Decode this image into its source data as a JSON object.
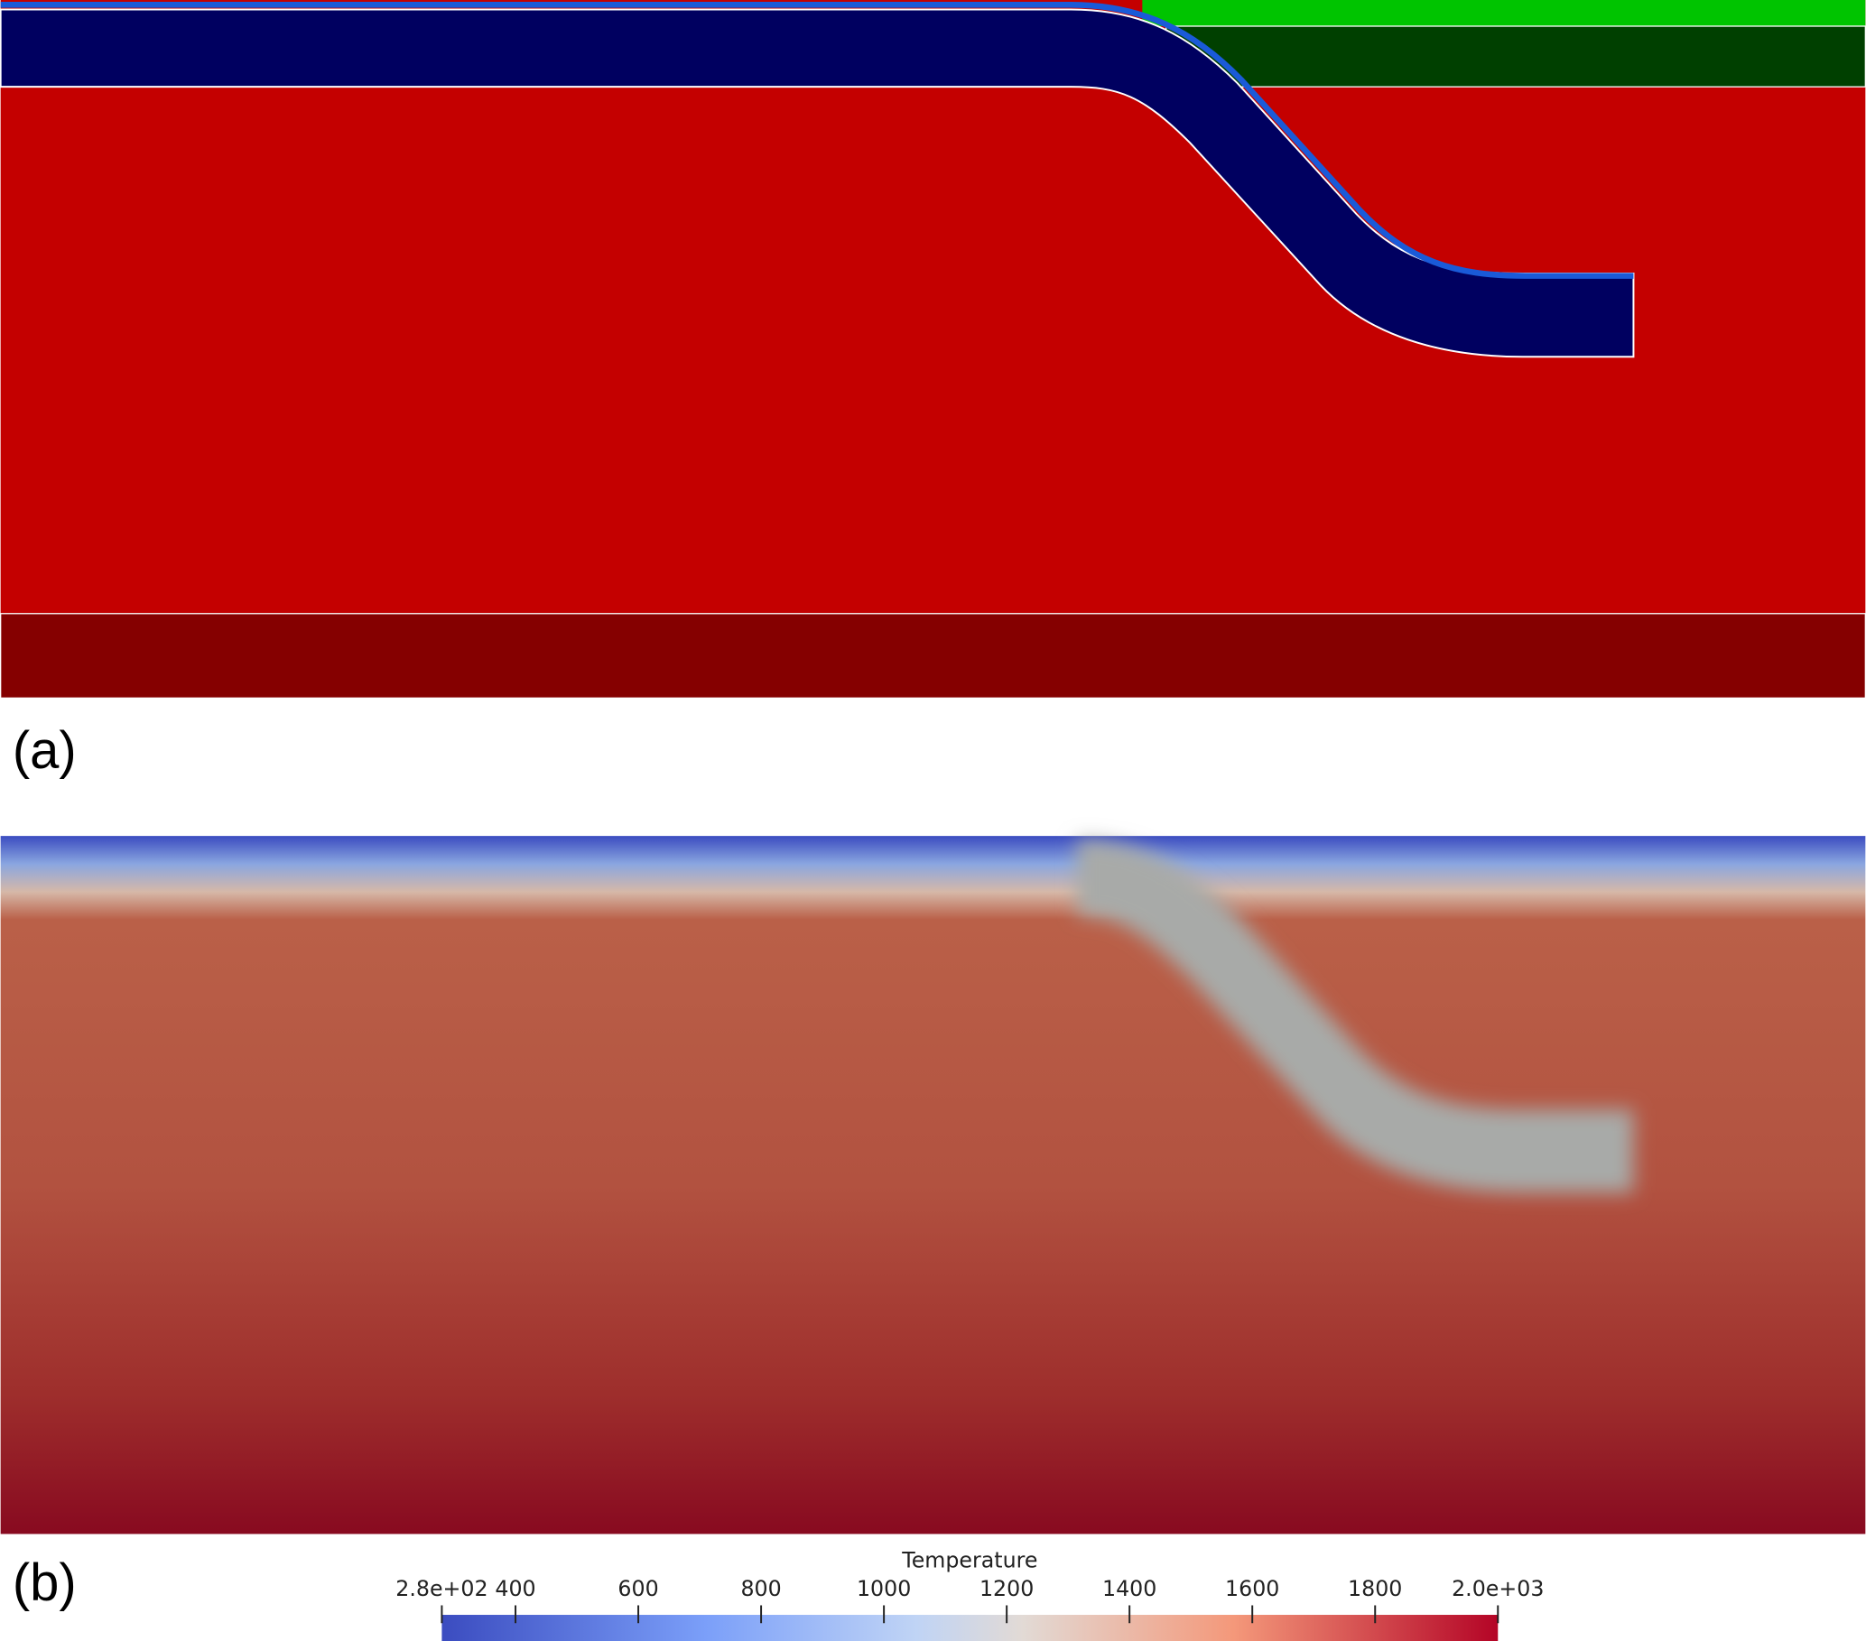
{
  "panels": [
    {
      "label": "(a)"
    },
    {
      "label": "(b)"
    }
  ],
  "colorbar": {
    "title": "Temperature",
    "lim": [
      280,
      2000
    ],
    "ticks": [
      {
        "value": 280,
        "label": "2.8e+02"
      },
      400,
      600,
      800,
      1000,
      1200,
      1400,
      1600,
      1800,
      {
        "value": 2000,
        "label": "2.0e+03"
      }
    ]
  }
}
